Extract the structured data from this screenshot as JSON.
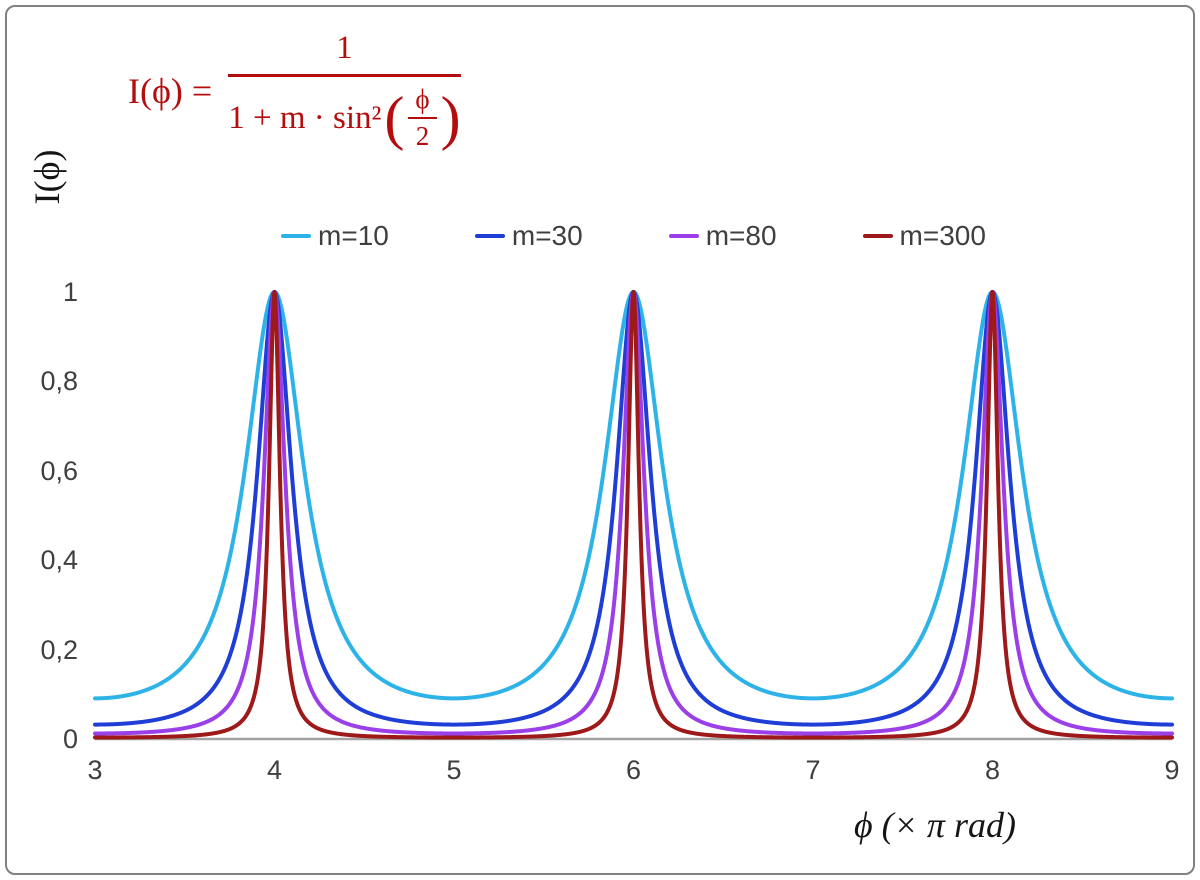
{
  "chart_data": {
    "type": "line",
    "function": "I(phi) = 1 / (1 + m * sin^2(phi/2)); x axis gives phi in units of pi rad, so plotted y = 1 / (1 + m * sin^2(pi*x/2))",
    "xlabel": "ϕ  (× π rad)",
    "ylabel": "I(ϕ)",
    "xlim": [
      3,
      9
    ],
    "ylim": [
      0,
      1
    ],
    "x_ticks": [
      "3",
      "4",
      "5",
      "6",
      "7",
      "8",
      "9"
    ],
    "x_tick_values": [
      3,
      4,
      5,
      6,
      7,
      8,
      9
    ],
    "y_ticks": [
      "0",
      "0,2",
      "0,4",
      "0,6",
      "0,8",
      "1"
    ],
    "y_tick_values": [
      0,
      0.2,
      0.4,
      0.6,
      0.8,
      1
    ],
    "decimal_separator": ",",
    "grid": false,
    "legend_position": "top-center",
    "axis_color": "#a3a3a3",
    "tick_label_color": "#3f3f3f",
    "series": [
      {
        "name": "m=10",
        "m": 10,
        "color": "#2eb3e8"
      },
      {
        "name": "m=30",
        "m": 30,
        "color": "#1e3ed6"
      },
      {
        "name": "m=80",
        "m": 80,
        "color": "#9b3fe8"
      },
      {
        "name": "m=300",
        "m": 300,
        "color": "#9e1a1a"
      }
    ],
    "peaks": {
      "x_positions": [
        4,
        6,
        8
      ],
      "peak_value": 1
    },
    "valley_values": {
      "m=10": 0.0909,
      "m=30": 0.0323,
      "m=80": 0.0123,
      "m=300": 0.0033
    },
    "sample_step_x": 0.0025
  },
  "formula_display": {
    "lhs": "I(ϕ) =",
    "numerator": "1",
    "den_text": "1 + m · sin²",
    "open_paren": "(",
    "inner_num": "ϕ",
    "inner_den": "2",
    "close_paren": ")",
    "color": "#b50d0d"
  }
}
